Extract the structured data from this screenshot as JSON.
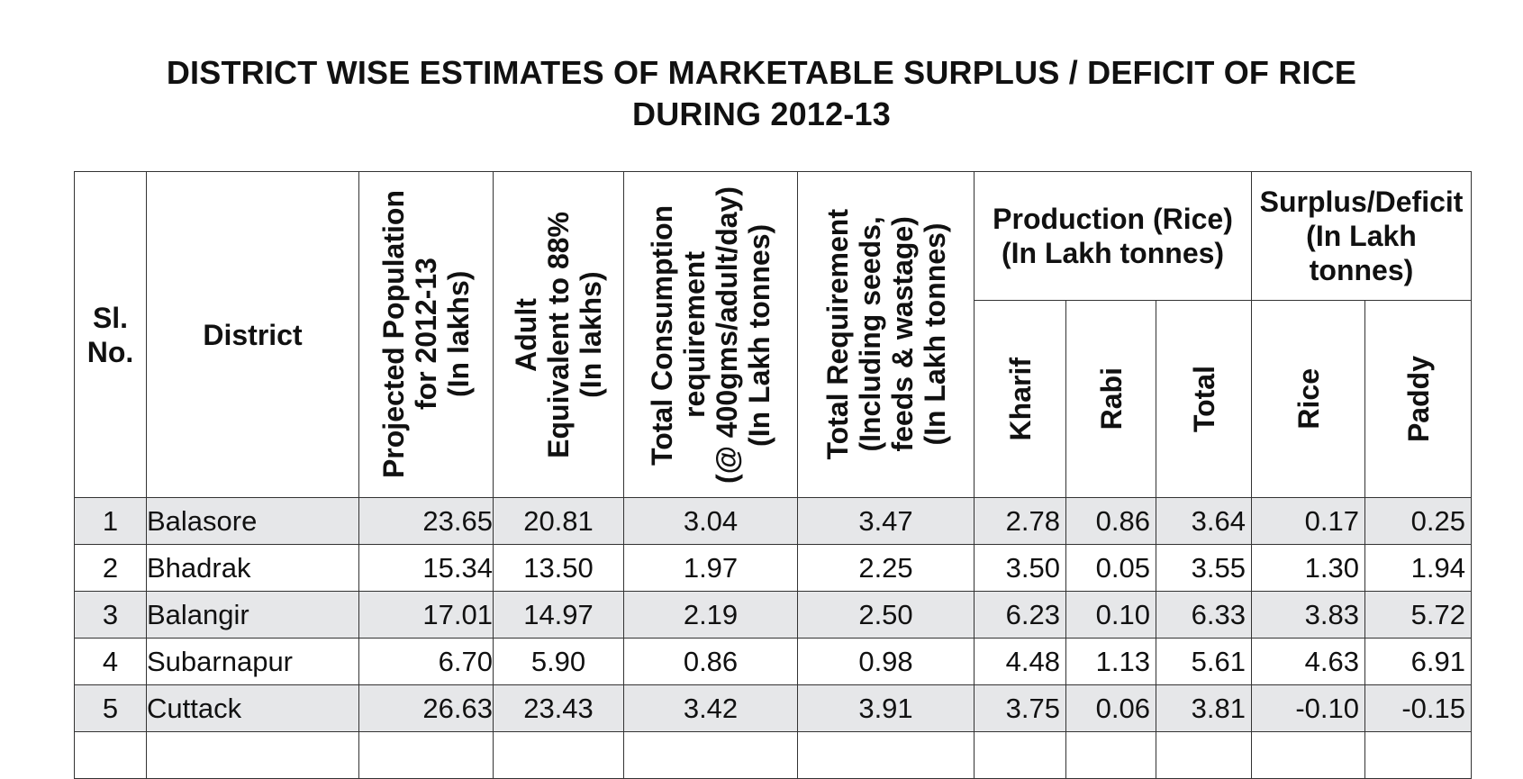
{
  "title": {
    "line1": "DISTRICT WISE ESTIMATES OF MARKETABLE SURPLUS / DEFICIT OF RICE",
    "line2": "DURING 2012-13"
  },
  "headers": {
    "sl_no": "Sl. No.",
    "district": "District",
    "projected_population": [
      "Projected Population",
      "for 2012-13",
      "(In lakhs)"
    ],
    "adult_equivalent": [
      "Adult",
      "Equivalent  to 88%",
      "(In lakhs)"
    ],
    "total_consumption": [
      "Total Consumption",
      "requirement",
      "(@ 400gms/adult/day)",
      "(In Lakh tonnes)"
    ],
    "total_requirement": [
      "Total Requirement",
      "(Including seeds,",
      "feeds & wastage)",
      "(In Lakh tonnes)"
    ],
    "production_group": "Production (Rice) (In Lakh tonnes)",
    "production_cols": [
      "Kharif",
      "Rabi",
      "Total"
    ],
    "surplus_group": "Surplus/Deficit (In Lakh tonnes)",
    "surplus_cols": [
      "Rice",
      "Paddy"
    ]
  },
  "rows": [
    {
      "sl": "1",
      "district": "Balasore",
      "population": "23.65",
      "adult": "20.81",
      "consumption": "3.04",
      "requirement": "3.47",
      "kharif": "2.78",
      "rabi": "0.86",
      "total": "3.64",
      "rice": "0.17",
      "paddy": "0.25"
    },
    {
      "sl": "2",
      "district": "Bhadrak",
      "population": "15.34",
      "adult": "13.50",
      "consumption": "1.97",
      "requirement": "2.25",
      "kharif": "3.50",
      "rabi": "0.05",
      "total": "3.55",
      "rice": "1.30",
      "paddy": "1.94"
    },
    {
      "sl": "3",
      "district": "Balangir",
      "population": "17.01",
      "adult": "14.97",
      "consumption": "2.19",
      "requirement": "2.50",
      "kharif": "6.23",
      "rabi": "0.10",
      "total": "6.33",
      "rice": "3.83",
      "paddy": "5.72"
    },
    {
      "sl": "4",
      "district": "Subarnapur",
      "population": "6.70",
      "adult": "5.90",
      "consumption": "0.86",
      "requirement": "0.98",
      "kharif": "4.48",
      "rabi": "1.13",
      "total": "5.61",
      "rice": "4.63",
      "paddy": "6.91"
    },
    {
      "sl": "5",
      "district": "Cuttack",
      "population": "26.63",
      "adult": "23.43",
      "consumption": "3.42",
      "requirement": "3.91",
      "kharif": "3.75",
      "rabi": "0.06",
      "total": "3.81",
      "rice": "-0.10",
      "paddy": "-0.15"
    }
  ],
  "colors": {
    "shaded_row": "#e6e7e9",
    "border": "#333333",
    "text": "#111111"
  }
}
